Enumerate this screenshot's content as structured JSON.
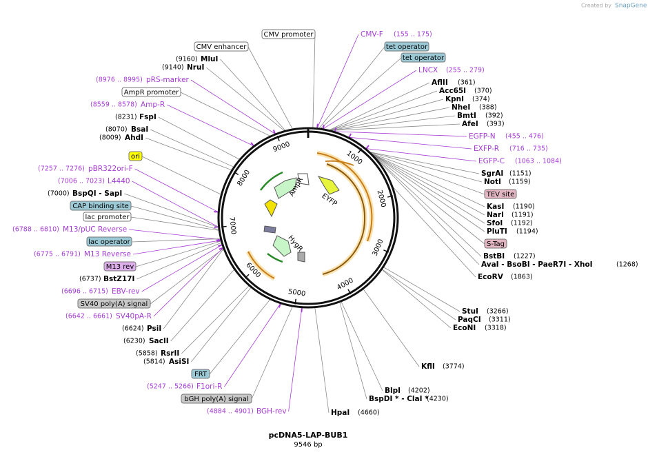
{
  "header": {
    "created_by": "Created by",
    "brand": "SnapGene"
  },
  "map": {
    "name": "pcDNA5-LAP-BUB1",
    "size": "9546 bp",
    "ring_labels": [
      "1000",
      "2000",
      "3000",
      "4000",
      "5000",
      "6000",
      "7000",
      "8000",
      "9000"
    ],
    "inner_features": [
      "EYFP",
      "AmpR",
      "HygR"
    ]
  },
  "labels": [
    {
      "kind": "feature",
      "text": "CMV promoter",
      "color": "#ffffff"
    },
    {
      "kind": "feature",
      "text": "CMV enhancer",
      "color": "#ffffff"
    },
    {
      "kind": "enzyme",
      "name": "MluI",
      "position": "(9160)"
    },
    {
      "kind": "enzyme",
      "name": "NruI",
      "position": "(9140)"
    },
    {
      "kind": "primer",
      "name": "pRS-marker",
      "position": "(8976 .. 8995)"
    },
    {
      "kind": "feature",
      "text": "AmpR promoter",
      "color": "#ffffff"
    },
    {
      "kind": "primer",
      "name": "Amp-R",
      "position": "(8559 .. 8578)"
    },
    {
      "kind": "enzyme",
      "name": "FspI",
      "position": "(8231)"
    },
    {
      "kind": "enzyme",
      "name": "BsaI",
      "position": "(8070)"
    },
    {
      "kind": "enzyme",
      "name": "AhdI",
      "position": "(8009)"
    },
    {
      "kind": "feature",
      "text": "ori",
      "color": "#ffff00"
    },
    {
      "kind": "primer",
      "name": "pBR322ori-F",
      "position": "(7257 .. 7276)"
    },
    {
      "kind": "primer",
      "name": "L4440",
      "position": "(7006 .. 7023)"
    },
    {
      "kind": "enzyme",
      "name": "BspQI - SapI",
      "position": "(7000)"
    },
    {
      "kind": "feature",
      "text": "CAP binding site",
      "color": "#9cc9d6"
    },
    {
      "kind": "feature",
      "text": "lac promoter",
      "color": "#ffffff"
    },
    {
      "kind": "primer",
      "name": "M13/pUC Reverse",
      "position": "(6788 .. 6810)"
    },
    {
      "kind": "feature",
      "text": "lac operator",
      "color": "#9cc9d6"
    },
    {
      "kind": "primer",
      "name": "M13 Reverse",
      "position": "(6775 .. 6791)"
    },
    {
      "kind": "feature",
      "text": "M13 rev",
      "color": "#dcaeea"
    },
    {
      "kind": "enzyme",
      "name": "BstZ17I",
      "position": "(6737)"
    },
    {
      "kind": "primer",
      "name": "EBV-rev",
      "position": "(6696 .. 6715)"
    },
    {
      "kind": "feature",
      "text": "SV40 poly(A) signal",
      "color": "#c8c8c8"
    },
    {
      "kind": "primer",
      "name": "SV40pA-R",
      "position": "(6642 .. 6661)"
    },
    {
      "kind": "enzyme",
      "name": "PsiI",
      "position": "(6624)"
    },
    {
      "kind": "enzyme",
      "name": "SacII",
      "position": "(6230)"
    },
    {
      "kind": "enzyme",
      "name": "RsrII",
      "position": "(5858)"
    },
    {
      "kind": "enzyme",
      "name": "AsiSI",
      "position": "(5814)"
    },
    {
      "kind": "feature",
      "text": "FRT",
      "color": "#9cc9d6"
    },
    {
      "kind": "primer",
      "name": "F1ori-R",
      "position": "(5247 .. 5266)"
    },
    {
      "kind": "feature",
      "text": "bGH poly(A) signal",
      "color": "#c8c8c8"
    },
    {
      "kind": "primer",
      "name": "BGH-rev",
      "position": "(4884 .. 4901)"
    },
    {
      "kind": "primer",
      "name": "CMV-F",
      "position": "(155 .. 175)"
    },
    {
      "kind": "feature",
      "text": "tet operator",
      "color": "#9cc9d6"
    },
    {
      "kind": "feature",
      "text": "tet operator",
      "color": "#9cc9d6"
    },
    {
      "kind": "primer",
      "name": "LNCX",
      "position": "(255 .. 279)"
    },
    {
      "kind": "enzyme",
      "name": "AflII",
      "position": "(361)"
    },
    {
      "kind": "enzyme",
      "name": "Acc65I",
      "position": "(370)"
    },
    {
      "kind": "enzyme",
      "name": "KpnI",
      "position": "(374)"
    },
    {
      "kind": "enzyme",
      "name": "NheI",
      "position": "(388)"
    },
    {
      "kind": "enzyme",
      "name": "BmtI",
      "position": "(392)"
    },
    {
      "kind": "enzyme",
      "name": "AfeI",
      "position": "(393)"
    },
    {
      "kind": "primer",
      "name": "EGFP-N",
      "position": "(455 .. 476)"
    },
    {
      "kind": "primer",
      "name": "EXFP-R",
      "position": "(716 .. 735)"
    },
    {
      "kind": "primer",
      "name": "EGFP-C",
      "position": "(1063 .. 1084)"
    },
    {
      "kind": "enzyme",
      "name": "SgrAI",
      "position": "(1151)"
    },
    {
      "kind": "enzyme",
      "name": "NotI",
      "position": "(1159)"
    },
    {
      "kind": "feature",
      "text": "TEV site",
      "color": "#e2b6c2"
    },
    {
      "kind": "enzyme",
      "name": "KasI",
      "position": "(1190)"
    },
    {
      "kind": "enzyme",
      "name": "NarI",
      "position": "(1191)"
    },
    {
      "kind": "enzyme",
      "name": "SfoI",
      "position": "(1192)"
    },
    {
      "kind": "enzyme",
      "name": "PluTI",
      "position": "(1194)"
    },
    {
      "kind": "feature",
      "text": "S-Tag",
      "color": "#e2b6c2"
    },
    {
      "kind": "enzyme",
      "name": "BstBI",
      "position": "(1227)"
    },
    {
      "kind": "enzyme",
      "name": "AvaI  - BsoBI  - PaeR7I  - XhoI",
      "position": "(1268)"
    },
    {
      "kind": "enzyme",
      "name": "EcoRV",
      "position": "(1863)"
    },
    {
      "kind": "enzyme",
      "name": "StuI",
      "position": "(3266)"
    },
    {
      "kind": "enzyme",
      "name": "PaqCI",
      "position": "(3311)"
    },
    {
      "kind": "enzyme",
      "name": "EcoNI",
      "position": "(3318)"
    },
    {
      "kind": "enzyme",
      "name": "KflI",
      "position": "(3774)"
    },
    {
      "kind": "enzyme",
      "name": "BlpI",
      "position": "(4202)"
    },
    {
      "kind": "enzyme",
      "name": "BspDI * - ClaI *",
      "position": "(4230)"
    },
    {
      "kind": "enzyme",
      "name": "HpaI",
      "position": "(4660)"
    }
  ]
}
